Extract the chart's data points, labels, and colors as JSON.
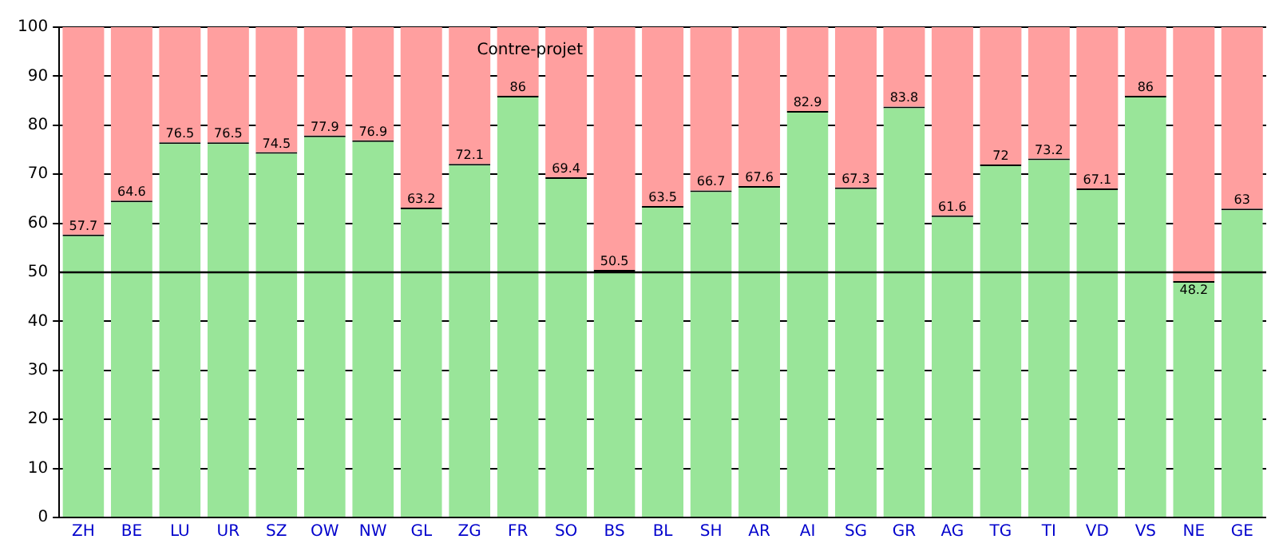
{
  "chart_data": {
    "type": "bar",
    "stacked": true,
    "categories": [
      "ZH",
      "BE",
      "LU",
      "UR",
      "SZ",
      "OW",
      "NW",
      "GL",
      "ZG",
      "FR",
      "SO",
      "BS",
      "BL",
      "SH",
      "AR",
      "AI",
      "SG",
      "GR",
      "AG",
      "TG",
      "TI",
      "VD",
      "VS",
      "NE",
      "GE"
    ],
    "series": [
      {
        "color": "#99e599",
        "values": [
          57.7,
          64.6,
          76.5,
          76.5,
          74.5,
          77.9,
          76.9,
          63.2,
          72.1,
          86,
          69.4,
          50.5,
          63.5,
          66.7,
          67.6,
          82.9,
          67.3,
          83.8,
          61.6,
          72,
          73.2,
          67.1,
          86,
          48.2,
          63
        ],
        "value_labels": [
          "57.7",
          "64.6",
          "76.5",
          "76.5",
          "74.5",
          "77.9",
          "76.9",
          "63.2",
          "72.1",
          "86",
          "69.4",
          "50.5",
          "63.5",
          "66.7",
          "67.6",
          "82.9",
          "67.3",
          "83.8",
          "61.6",
          "72",
          "73.2",
          "67.1",
          "86",
          "48.2",
          "63"
        ]
      },
      {
        "color": "#ff9f9f",
        "values": [
          42.3,
          35.4,
          23.5,
          23.5,
          25.5,
          22.1,
          23.1,
          36.8,
          27.9,
          14,
          30.6,
          49.5,
          36.5,
          33.3,
          32.4,
          17.1,
          32.7,
          16.2,
          38.4,
          28,
          26.8,
          32.9,
          14,
          51.8,
          37
        ]
      }
    ],
    "ylim": [
      0,
      100
    ],
    "yticks": [
      0,
      10,
      20,
      30,
      40,
      50,
      60,
      70,
      80,
      90,
      100
    ],
    "grid": "y",
    "legend": false,
    "ref_lines": [
      {
        "axis": "y",
        "value": 50,
        "color": "#000000"
      }
    ],
    "annotations": [
      "Contre-projet"
    ]
  }
}
